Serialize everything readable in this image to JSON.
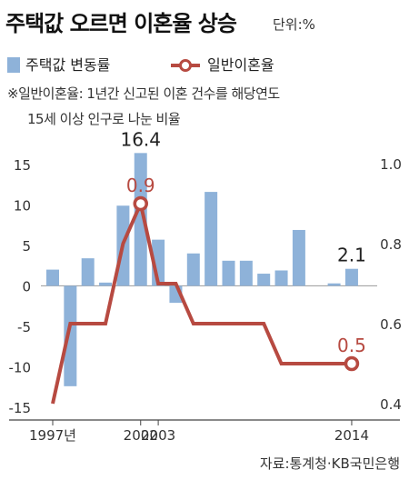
{
  "title": "주택값 오르면 이혼율 상승",
  "unit": "단위:%",
  "legend": {
    "bar": "주택값 변동률",
    "line": "일반이혼율"
  },
  "note": {
    "line1": "※일반이혼율: 1년간 신고된 이혼 건수를 해당연도",
    "line2": "15세 이상 인구로 나눈 비율"
  },
  "source": "자료:통계청·KB국민은행",
  "colors": {
    "bar": "#8eb2d9",
    "line": "#b74a41",
    "text": "#222222",
    "axis": "#999999"
  },
  "chart_data": {
    "type": "bar",
    "x": [
      1997,
      1998,
      1999,
      2000,
      2001,
      2002,
      2003,
      2004,
      2005,
      2006,
      2007,
      2008,
      2009,
      2010,
      2011,
      2012,
      2013,
      2014
    ],
    "x_tick_labels": [
      {
        "x": 1997,
        "label": "1997년"
      },
      {
        "x": 2002,
        "label": "2002"
      },
      {
        "x": 2003,
        "label": "2003"
      },
      {
        "x": 2014,
        "label": "2014"
      }
    ],
    "series": [
      {
        "name": "주택값 변동률",
        "type": "bar",
        "axis": "left",
        "values": [
          2.0,
          -12.4,
          3.4,
          0.4,
          9.9,
          16.4,
          5.7,
          -2.1,
          4.0,
          11.6,
          3.1,
          3.1,
          1.5,
          1.9,
          6.9,
          null,
          0.3,
          2.1
        ]
      },
      {
        "name": "일반이혼율",
        "type": "line",
        "axis": "right",
        "values": [
          0.4,
          0.6,
          0.6,
          0.6,
          0.8,
          0.9,
          0.7,
          0.7,
          0.6,
          0.6,
          0.6,
          0.6,
          0.6,
          0.5,
          0.5,
          0.5,
          0.5,
          0.5
        ]
      }
    ],
    "left_axis": {
      "min": -15,
      "max": 17,
      "ticks": [
        15,
        10,
        5,
        0,
        -5,
        -10,
        -15
      ]
    },
    "right_axis": {
      "min": 0.36,
      "max": 1.0,
      "ticks": [
        1.0,
        0.8,
        0.6,
        0.4
      ]
    },
    "annotations": [
      {
        "series": 0,
        "x": 2002,
        "label": "16.4"
      },
      {
        "series": 0,
        "x": 2014,
        "label": "2.1"
      },
      {
        "series": 1,
        "x": 2002,
        "label": "0.9"
      },
      {
        "series": 1,
        "x": 2014,
        "label": "0.5"
      }
    ],
    "grid": false
  }
}
